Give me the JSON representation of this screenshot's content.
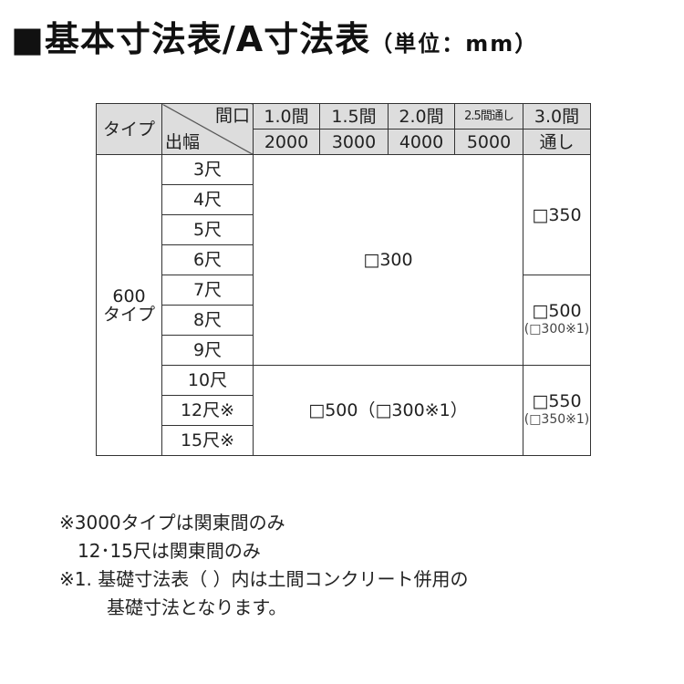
{
  "title": {
    "main": "■基本寸法表/A寸法表",
    "unit": "（単位：mm）"
  },
  "table": {
    "header": {
      "type": "タイプ",
      "frontage": "間口",
      "projection": "出幅",
      "columns": [
        {
          "top": "1.0間",
          "bottom": "2000"
        },
        {
          "top": "1.5間",
          "bottom": "3000"
        },
        {
          "top": "2.0間",
          "bottom": "4000"
        },
        {
          "top": "2.5間通し",
          "bottom": "5000"
        },
        {
          "top": "3.0間",
          "bottom": "通し"
        }
      ]
    },
    "type_label": [
      "600",
      "タイプ"
    ],
    "rows": [
      "3尺",
      "4尺",
      "5尺",
      "6尺",
      "7尺",
      "8尺",
      "9尺",
      "10尺",
      "12尺※",
      "15尺※"
    ],
    "cells": {
      "main_3_9": "□300",
      "main_10_15": "□500（□300※1）",
      "right_3_6": "□350",
      "right_7_9": "□500",
      "right_7_9_sub": "(□300※1)",
      "right_10_15": "□550",
      "right_10_15_sub": "(□350※1)"
    }
  },
  "notes": [
    "※3000タイプは関東間のみ",
    "12･15尺は関東間のみ",
    "※1. 基礎寸法表（ ）内は土間コンクリート併用の",
    "基礎寸法となります。"
  ]
}
